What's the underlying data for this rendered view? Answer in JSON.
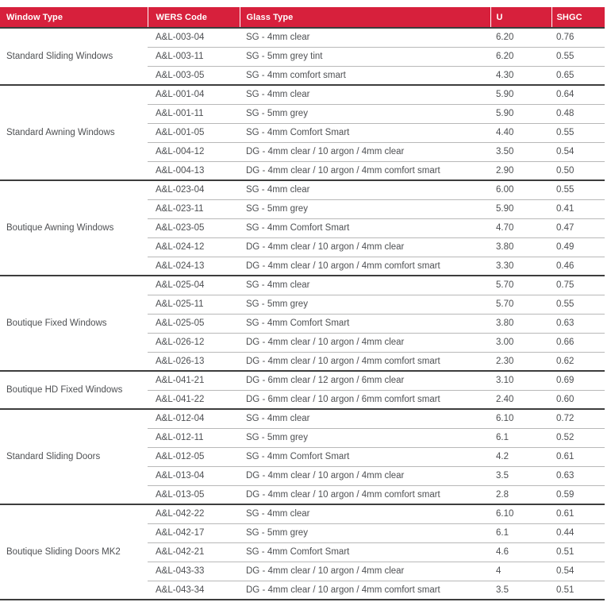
{
  "colors": {
    "header_bg": "#d7203c",
    "header_text": "#ffffff",
    "body_text": "#4e5053",
    "row_divider": "#b8b8b8",
    "group_divider": "#3d3d3d"
  },
  "table": {
    "columns": [
      "Window Type",
      "WERS Code",
      "Glass Type",
      "U",
      "SHGC"
    ],
    "groups": [
      {
        "window_type": "Standard Sliding Windows",
        "rows": [
          {
            "wers_code": "A&L-003-04",
            "glass_type": "SG - 4mm clear",
            "u": "6.20",
            "shgc": "0.76"
          },
          {
            "wers_code": "A&L-003-11",
            "glass_type": "SG - 5mm grey tint",
            "u": "6.20",
            "shgc": "0.55"
          },
          {
            "wers_code": "A&L-003-05",
            "glass_type": "SG - 4mm comfort smart",
            "u": "4.30",
            "shgc": "0.65"
          }
        ]
      },
      {
        "window_type": "Standard Awning Windows",
        "rows": [
          {
            "wers_code": "A&L-001-04",
            "glass_type": "SG - 4mm clear",
            "u": "5.90",
            "shgc": "0.64"
          },
          {
            "wers_code": "A&L-001-11",
            "glass_type": "SG - 5mm grey",
            "u": "5.90",
            "shgc": "0.48"
          },
          {
            "wers_code": "A&L-001-05",
            "glass_type": "SG - 4mm Comfort Smart",
            "u": "4.40",
            "shgc": "0.55"
          },
          {
            "wers_code": "A&L-004-12",
            "glass_type": "DG - 4mm clear / 10 argon / 4mm clear",
            "u": "3.50",
            "shgc": "0.54"
          },
          {
            "wers_code": "A&L-004-13",
            "glass_type": "DG - 4mm clear / 10 argon / 4mm comfort smart",
            "u": "2.90",
            "shgc": "0.50"
          }
        ]
      },
      {
        "window_type": "Boutique Awning Windows",
        "rows": [
          {
            "wers_code": "A&L-023-04",
            "glass_type": "SG - 4mm clear",
            "u": "6.00",
            "shgc": "0.55"
          },
          {
            "wers_code": "A&L-023-11",
            "glass_type": "SG - 5mm grey",
            "u": "5.90",
            "shgc": "0.41"
          },
          {
            "wers_code": "A&L-023-05",
            "glass_type": "SG - 4mm Comfort Smart",
            "u": "4.70",
            "shgc": "0.47"
          },
          {
            "wers_code": "A&L-024-12",
            "glass_type": "DG - 4mm clear / 10 argon / 4mm clear",
            "u": "3.80",
            "shgc": "0.49"
          },
          {
            "wers_code": "A&L-024-13",
            "glass_type": "DG - 4mm clear / 10 argon / 4mm comfort smart",
            "u": "3.30",
            "shgc": "0.46"
          }
        ]
      },
      {
        "window_type": "Boutique Fixed Windows",
        "rows": [
          {
            "wers_code": "A&L-025-04",
            "glass_type": "SG - 4mm clear",
            "u": "5.70",
            "shgc": "0.75"
          },
          {
            "wers_code": "A&L-025-11",
            "glass_type": "SG - 5mm grey",
            "u": "5.70",
            "shgc": "0.55"
          },
          {
            "wers_code": "A&L-025-05",
            "glass_type": "SG - 4mm Comfort Smart",
            "u": "3.80",
            "shgc": "0.63"
          },
          {
            "wers_code": "A&L-026-12",
            "glass_type": "DG - 4mm clear / 10 argon / 4mm clear",
            "u": "3.00",
            "shgc": "0.66"
          },
          {
            "wers_code": "A&L-026-13",
            "glass_type": "DG - 4mm clear / 10 argon / 4mm comfort smart",
            "u": "2.30",
            "shgc": "0.62"
          }
        ]
      },
      {
        "window_type": "Boutique HD Fixed Windows",
        "rows": [
          {
            "wers_code": "A&L-041-21",
            "glass_type": "DG - 6mm clear / 12 argon / 6mm clear",
            "u": "3.10",
            "shgc": "0.69"
          },
          {
            "wers_code": "A&L-041-22",
            "glass_type": "DG - 6mm clear / 10 argon / 6mm comfort smart",
            "u": "2.40",
            "shgc": "0.60"
          }
        ]
      },
      {
        "window_type": "Standard Sliding Doors",
        "rows": [
          {
            "wers_code": "A&L-012-04",
            "glass_type": "SG - 4mm clear",
            "u": "6.10",
            "shgc": "0.72"
          },
          {
            "wers_code": "A&L-012-11",
            "glass_type": "SG - 5mm grey",
            "u": "6.1",
            "shgc": "0.52"
          },
          {
            "wers_code": "A&L-012-05",
            "glass_type": "SG - 4mm Comfort Smart",
            "u": "4.2",
            "shgc": "0.61"
          },
          {
            "wers_code": "A&L-013-04",
            "glass_type": "DG - 4mm clear / 10 argon / 4mm clear",
            "u": "3.5",
            "shgc": "0.63"
          },
          {
            "wers_code": "A&L-013-05",
            "glass_type": "DG - 4mm clear / 10 argon / 4mm comfort smart",
            "u": "2.8",
            "shgc": "0.59"
          }
        ]
      },
      {
        "window_type": "Boutique Sliding Doors MK2",
        "rows": [
          {
            "wers_code": "A&L-042-22",
            "glass_type": "SG - 4mm clear",
            "u": "6.10",
            "shgc": "0.61"
          },
          {
            "wers_code": "A&L-042-17",
            "glass_type": "SG - 5mm grey",
            "u": "6.1",
            "shgc": "0.44"
          },
          {
            "wers_code": "A&L-042-21",
            "glass_type": "SG - 4mm Comfort Smart",
            "u": "4.6",
            "shgc": "0.51"
          },
          {
            "wers_code": "A&L-043-33",
            "glass_type": "DG - 4mm clear / 10 argon / 4mm clear",
            "u": "4",
            "shgc": "0.54"
          },
          {
            "wers_code": "A&L-043-34",
            "glass_type": "DG - 4mm clear / 10 argon / 4mm comfort smart",
            "u": "3.5",
            "shgc": "0.51"
          }
        ]
      }
    ]
  }
}
